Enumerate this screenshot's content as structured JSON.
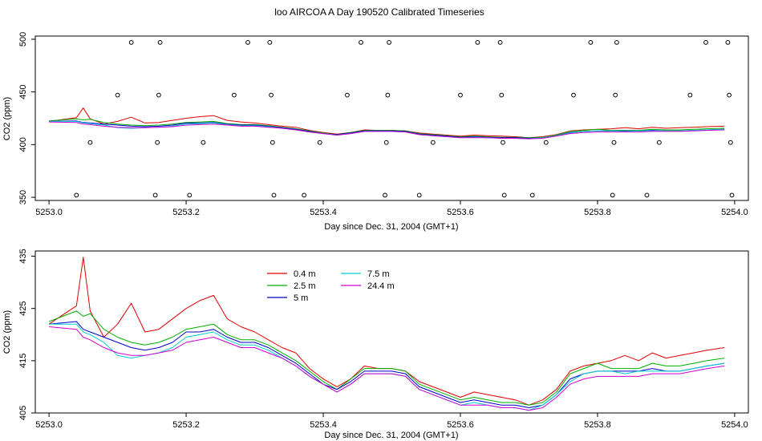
{
  "title": "loo AIRCOA A  Day 190520  Calibrated Timeseries",
  "colors": {
    "0.4 m": "#e00000",
    "2.5 m": "#00b000",
    "5 m": "#0000cc",
    "7.5 m": "#00d0d0",
    "24.4 m": "#d000d0",
    "flag": "#000000"
  },
  "chart_data": [
    {
      "type": "line",
      "xlabel": "Day since Dec. 31, 2004 (GMT+1)",
      "ylabel": "CO2 (ppm)",
      "xlim": [
        5252.98,
        5254.02
      ],
      "ylim": [
        347,
        503
      ],
      "xticks": [
        5253.0,
        5253.2,
        5253.4,
        5253.6,
        5253.8,
        5254.0
      ],
      "xtick_labels": [
        "5253.0",
        "5253.2",
        "5253.4",
        "5253.6",
        "5253.8",
        "5254.0"
      ],
      "yticks": [
        350,
        400,
        450,
        500
      ],
      "ytick_labels": [
        "350",
        "400",
        "450",
        "500"
      ],
      "flags": [
        {
          "x": 5253.04,
          "y": 352
        },
        {
          "x": 5253.06,
          "y": 402
        },
        {
          "x": 5253.1,
          "y": 447
        },
        {
          "x": 5253.12,
          "y": 497
        },
        {
          "x": 5253.155,
          "y": 352
        },
        {
          "x": 5253.158,
          "y": 402
        },
        {
          "x": 5253.16,
          "y": 447
        },
        {
          "x": 5253.162,
          "y": 497
        },
        {
          "x": 5253.205,
          "y": 352
        },
        {
          "x": 5253.225,
          "y": 402
        },
        {
          "x": 5253.27,
          "y": 447
        },
        {
          "x": 5253.29,
          "y": 497
        },
        {
          "x": 5253.322,
          "y": 497
        },
        {
          "x": 5253.324,
          "y": 447
        },
        {
          "x": 5253.326,
          "y": 402
        },
        {
          "x": 5253.328,
          "y": 352
        },
        {
          "x": 5253.372,
          "y": 352
        },
        {
          "x": 5253.395,
          "y": 402
        },
        {
          "x": 5253.435,
          "y": 447
        },
        {
          "x": 5253.455,
          "y": 497
        },
        {
          "x": 5253.49,
          "y": 352
        },
        {
          "x": 5253.492,
          "y": 402
        },
        {
          "x": 5253.494,
          "y": 447
        },
        {
          "x": 5253.496,
          "y": 497
        },
        {
          "x": 5253.54,
          "y": 352
        },
        {
          "x": 5253.56,
          "y": 402
        },
        {
          "x": 5253.6,
          "y": 447
        },
        {
          "x": 5253.625,
          "y": 497
        },
        {
          "x": 5253.658,
          "y": 497
        },
        {
          "x": 5253.66,
          "y": 447
        },
        {
          "x": 5253.662,
          "y": 402
        },
        {
          "x": 5253.664,
          "y": 352
        },
        {
          "x": 5253.705,
          "y": 352
        },
        {
          "x": 5253.725,
          "y": 402
        },
        {
          "x": 5253.765,
          "y": 447
        },
        {
          "x": 5253.79,
          "y": 497
        },
        {
          "x": 5253.822,
          "y": 352
        },
        {
          "x": 5253.824,
          "y": 402
        },
        {
          "x": 5253.826,
          "y": 447
        },
        {
          "x": 5253.828,
          "y": 497
        },
        {
          "x": 5253.872,
          "y": 352
        },
        {
          "x": 5253.89,
          "y": 402
        },
        {
          "x": 5253.935,
          "y": 447
        },
        {
          "x": 5253.958,
          "y": 497
        },
        {
          "x": 5253.99,
          "y": 497
        },
        {
          "x": 5253.992,
          "y": 447
        },
        {
          "x": 5253.994,
          "y": 402
        },
        {
          "x": 5253.996,
          "y": 352
        }
      ]
    },
    {
      "type": "line",
      "xlabel": "Day since Dec. 31, 2004 (GMT+1)",
      "ylabel": "CO2 (ppm)",
      "xlim": [
        5252.98,
        5254.02
      ],
      "ylim": [
        405,
        436
      ],
      "xticks": [
        5253.0,
        5253.2,
        5253.4,
        5253.6,
        5253.8,
        5254.0
      ],
      "xtick_labels": [
        "5253.0",
        "5253.2",
        "5253.4",
        "5253.6",
        "5253.8",
        "5254.0"
      ],
      "yticks": [
        405,
        415,
        425,
        435
      ],
      "ytick_labels": [
        "405",
        "415",
        "425",
        "435"
      ],
      "legend": {
        "placement": "top-left",
        "entries": [
          "0.4 m",
          "2.5 m",
          "5 m",
          "7.5 m",
          "24.4 m"
        ]
      },
      "x": [
        5253.0,
        5253.04,
        5253.05,
        5253.06,
        5253.08,
        5253.1,
        5253.12,
        5253.14,
        5253.16,
        5253.18,
        5253.2,
        5253.22,
        5253.24,
        5253.26,
        5253.28,
        5253.3,
        5253.32,
        5253.34,
        5253.36,
        5253.38,
        5253.4,
        5253.42,
        5253.44,
        5253.46,
        5253.48,
        5253.5,
        5253.52,
        5253.54,
        5253.56,
        5253.58,
        5253.6,
        5253.62,
        5253.64,
        5253.66,
        5253.68,
        5253.7,
        5253.72,
        5253.74,
        5253.76,
        5253.78,
        5253.8,
        5253.82,
        5253.84,
        5253.86,
        5253.88,
        5253.9,
        5253.92,
        5253.94,
        5253.96,
        5253.985
      ],
      "series": [
        {
          "name": "0.4 m",
          "values": [
            422.0,
            425.5,
            434.8,
            424.5,
            419.5,
            422.0,
            426.0,
            420.5,
            421.0,
            423.0,
            425.0,
            426.5,
            427.5,
            423.0,
            421.5,
            420.5,
            419.0,
            417.5,
            416.5,
            413.5,
            411.5,
            410.0,
            411.5,
            414.0,
            413.5,
            413.5,
            413.0,
            411.0,
            410.0,
            409.0,
            408.0,
            409.0,
            408.5,
            408.0,
            407.5,
            406.5,
            407.5,
            409.5,
            413.0,
            414.0,
            414.5,
            415.0,
            416.0,
            415.0,
            416.5,
            415.5,
            416.0,
            416.5,
            417.0,
            417.5
          ]
        },
        {
          "name": "2.5 m",
          "values": [
            422.5,
            424.5,
            423.5,
            424.0,
            421.0,
            419.5,
            418.5,
            418.0,
            418.5,
            419.5,
            421.0,
            421.5,
            422.0,
            420.0,
            419.0,
            419.0,
            418.0,
            416.5,
            415.0,
            413.0,
            411.0,
            409.5,
            411.5,
            413.5,
            413.5,
            413.5,
            413.0,
            410.5,
            409.5,
            408.5,
            407.5,
            408.0,
            407.5,
            407.0,
            407.0,
            406.5,
            407.0,
            409.0,
            412.5,
            413.5,
            414.5,
            413.5,
            413.5,
            413.5,
            414.5,
            414.0,
            414.0,
            414.5,
            415.0,
            415.5
          ]
        },
        {
          "name": "5 m",
          "values": [
            422.0,
            422.5,
            421.0,
            420.5,
            419.5,
            418.5,
            417.5,
            417.0,
            417.5,
            418.5,
            420.5,
            420.5,
            421.0,
            419.5,
            418.5,
            418.5,
            417.5,
            416.0,
            414.5,
            412.5,
            410.5,
            409.5,
            411.0,
            413.0,
            413.0,
            413.0,
            412.5,
            410.0,
            409.0,
            408.0,
            407.0,
            407.5,
            407.0,
            406.5,
            406.5,
            406.0,
            406.5,
            408.5,
            411.5,
            412.5,
            413.0,
            413.0,
            413.0,
            413.0,
            413.5,
            413.0,
            413.0,
            413.5,
            414.0,
            414.5
          ]
        },
        {
          "name": "7.5 m",
          "values": [
            422.0,
            422.0,
            420.5,
            420.0,
            418.5,
            416.0,
            415.5,
            416.0,
            416.5,
            417.5,
            419.5,
            420.0,
            420.5,
            419.0,
            418.0,
            418.0,
            417.0,
            415.5,
            414.0,
            412.0,
            410.5,
            409.0,
            410.5,
            412.5,
            412.5,
            412.5,
            412.0,
            409.5,
            408.5,
            407.5,
            406.5,
            407.0,
            406.5,
            406.0,
            406.0,
            405.5,
            406.5,
            408.5,
            411.0,
            412.5,
            413.0,
            413.0,
            412.5,
            413.0,
            413.0,
            413.0,
            413.0,
            413.5,
            414.0,
            414.5
          ]
        },
        {
          "name": "24.4 m",
          "values": [
            421.5,
            421.0,
            419.5,
            419.0,
            417.5,
            416.5,
            416.0,
            416.0,
            416.5,
            417.0,
            418.5,
            419.0,
            419.5,
            418.5,
            417.5,
            417.5,
            416.5,
            415.5,
            414.0,
            412.0,
            410.5,
            409.0,
            410.5,
            412.5,
            412.5,
            412.5,
            412.0,
            409.5,
            408.5,
            407.5,
            406.5,
            406.5,
            406.5,
            406.0,
            406.0,
            405.5,
            406.0,
            408.0,
            410.5,
            411.5,
            412.0,
            412.0,
            412.0,
            412.0,
            412.5,
            412.5,
            412.5,
            413.0,
            413.5,
            414.0
          ]
        }
      ]
    }
  ]
}
